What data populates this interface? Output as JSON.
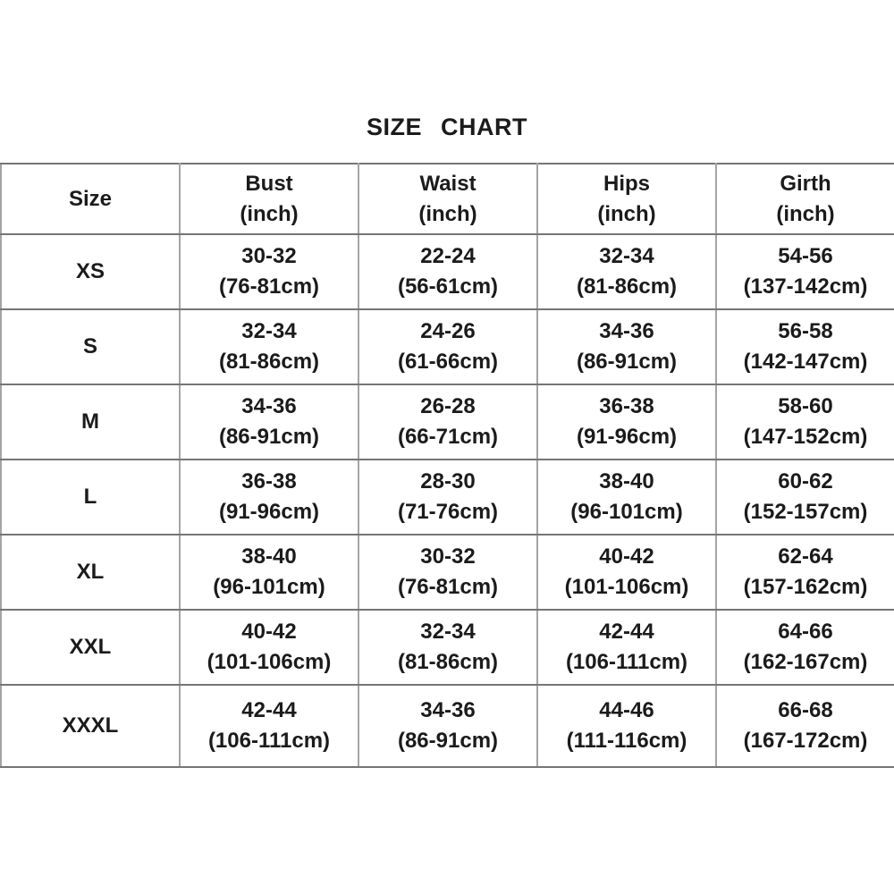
{
  "title": "SIZE CHART",
  "colors": {
    "text": "#1b1b1b",
    "grid_horizontal": "#757575",
    "grid_vertical": "#a5a5a5",
    "background": "#ffffff"
  },
  "chart_data": {
    "type": "table",
    "title": "SIZE CHART",
    "columns": [
      {
        "label": "Size",
        "unit": ""
      },
      {
        "label": "Bust",
        "unit": "(inch)"
      },
      {
        "label": "Waist",
        "unit": "(inch)"
      },
      {
        "label": "Hips",
        "unit": "(inch)"
      },
      {
        "label": "Girth",
        "unit": "(inch)"
      }
    ],
    "rows": [
      {
        "size": "XS",
        "bust": [
          "30-32",
          "(76-81cm)"
        ],
        "waist": [
          "22-24",
          "(56-61cm)"
        ],
        "hips": [
          "32-34",
          "(81-86cm)"
        ],
        "girth": [
          "54-56",
          "(137-142cm)"
        ]
      },
      {
        "size": "S",
        "bust": [
          "32-34",
          "(81-86cm)"
        ],
        "waist": [
          "24-26",
          "(61-66cm)"
        ],
        "hips": [
          "34-36",
          "(86-91cm)"
        ],
        "girth": [
          "56-58",
          "(142-147cm)"
        ]
      },
      {
        "size": "M",
        "bust": [
          "34-36",
          "(86-91cm)"
        ],
        "waist": [
          "26-28",
          "(66-71cm)"
        ],
        "hips": [
          "36-38",
          "(91-96cm)"
        ],
        "girth": [
          "58-60",
          "(147-152cm)"
        ]
      },
      {
        "size": "L",
        "bust": [
          "36-38",
          "(91-96cm)"
        ],
        "waist": [
          "28-30",
          "(71-76cm)"
        ],
        "hips": [
          "38-40",
          "(96-101cm)"
        ],
        "girth": [
          "60-62",
          "(152-157cm)"
        ]
      },
      {
        "size": "XL",
        "bust": [
          "38-40",
          "(96-101cm)"
        ],
        "waist": [
          "30-32",
          "(76-81cm)"
        ],
        "hips": [
          "40-42",
          "(101-106cm)"
        ],
        "girth": [
          "62-64",
          "(157-162cm)"
        ]
      },
      {
        "size": "XXL",
        "bust": [
          "40-42",
          "(101-106cm)"
        ],
        "waist": [
          "32-34",
          "(81-86cm)"
        ],
        "hips": [
          "42-44",
          "(106-111cm)"
        ],
        "girth": [
          "64-66",
          "(162-167cm)"
        ]
      },
      {
        "size": "XXXL",
        "bust": [
          "42-44",
          "(106-111cm)"
        ],
        "waist": [
          "34-36",
          "(86-91cm)"
        ],
        "hips": [
          "44-46",
          "(111-116cm)"
        ],
        "girth": [
          "66-68",
          "(167-172cm)"
        ]
      }
    ]
  }
}
